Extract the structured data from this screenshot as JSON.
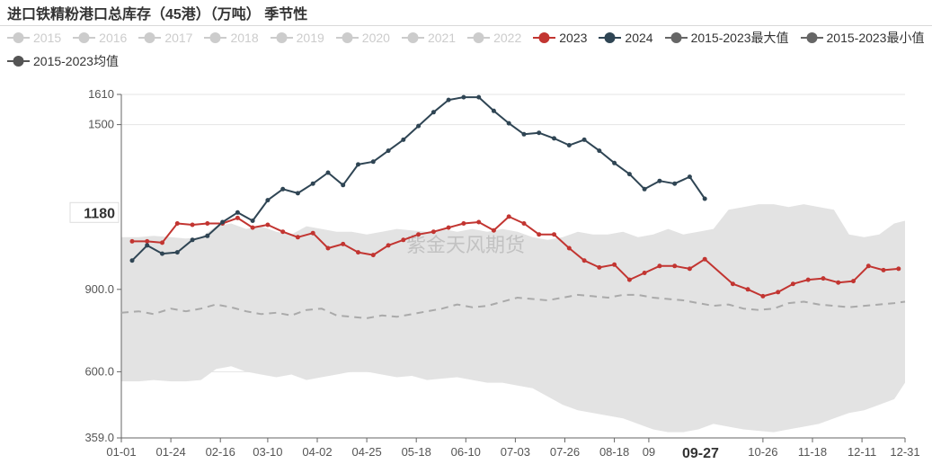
{
  "title": "进口铁精粉港口总库存（45港）（万吨） 季节性",
  "watermark": "紫金天风期货",
  "chart_data": {
    "type": "line",
    "title": "进口铁精粉港口总库存（45港）（万吨） 季节性",
    "xlabel": "",
    "ylabel": "",
    "ylim": [
      359,
      1610
    ],
    "y_ticks": [
      "1610",
      "1500",
      "900.0",
      "600.0",
      "359.0"
    ],
    "y_tick_values": [
      1610,
      1500,
      900,
      600,
      359
    ],
    "x_ticks": [
      "01-01",
      "01-24",
      "02-16",
      "03-10",
      "04-02",
      "04-25",
      "05-18",
      "06-10",
      "07-03",
      "07-26",
      "08-18",
      "09",
      "10-26",
      "11-18",
      "12-11",
      "12-31"
    ],
    "x_tick_days": [
      1,
      24,
      47,
      69,
      92,
      115,
      138,
      161,
      184,
      207,
      230,
      246,
      299,
      322,
      345,
      365
    ],
    "x_day_range": [
      1,
      365
    ],
    "hover": {
      "x_label": "09-27",
      "x_day": 270,
      "y_label": "1180",
      "y_value": 1180
    },
    "legend_placement": "top",
    "grid": true,
    "band": {
      "name": "2015-2023 range",
      "x": [
        1,
        9,
        16,
        24,
        31,
        38,
        45,
        52,
        59,
        66,
        73,
        80,
        87,
        94,
        101,
        108,
        115,
        122,
        129,
        136,
        143,
        150,
        157,
        164,
        171,
        178,
        185,
        192,
        199,
        206,
        213,
        220,
        227,
        234,
        241,
        248,
        255,
        262,
        269,
        276,
        283,
        290,
        297,
        304,
        311,
        318,
        325,
        332,
        339,
        346,
        353,
        360,
        365
      ],
      "upper": [
        1090,
        1090,
        1095,
        1090,
        1085,
        1090,
        1130,
        1140,
        1120,
        1130,
        1110,
        1100,
        1130,
        1120,
        1110,
        1110,
        1100,
        1110,
        1120,
        1115,
        1110,
        1120,
        1110,
        1120,
        1110,
        1120,
        1110,
        1090,
        1080,
        1090,
        1110,
        1100,
        1100,
        1110,
        1090,
        1100,
        1120,
        1100,
        1110,
        1120,
        1190,
        1200,
        1210,
        1210,
        1200,
        1210,
        1200,
        1190,
        1100,
        1090,
        1100,
        1140,
        1150
      ],
      "lower": [
        565,
        565,
        570,
        565,
        565,
        570,
        610,
        620,
        600,
        590,
        580,
        590,
        570,
        580,
        590,
        600,
        600,
        590,
        580,
        585,
        570,
        575,
        580,
        570,
        560,
        560,
        550,
        540,
        510,
        480,
        460,
        450,
        440,
        430,
        410,
        390,
        380,
        380,
        390,
        410,
        400,
        390,
        385,
        380,
        390,
        400,
        410,
        430,
        450,
        460,
        480,
        500,
        560
      ]
    },
    "series": [
      {
        "name": "2015",
        "active": false,
        "color": "#cccccc",
        "x": [],
        "y": []
      },
      {
        "name": "2016",
        "active": false,
        "color": "#cccccc",
        "x": [],
        "y": []
      },
      {
        "name": "2017",
        "active": false,
        "color": "#cccccc",
        "x": [],
        "y": []
      },
      {
        "name": "2018",
        "active": false,
        "color": "#cccccc",
        "x": [],
        "y": []
      },
      {
        "name": "2019",
        "active": false,
        "color": "#cccccc",
        "x": [],
        "y": []
      },
      {
        "name": "2020",
        "active": false,
        "color": "#cccccc",
        "x": [],
        "y": []
      },
      {
        "name": "2021",
        "active": false,
        "color": "#cccccc",
        "x": [],
        "y": []
      },
      {
        "name": "2022",
        "active": false,
        "color": "#cccccc",
        "x": [],
        "y": []
      },
      {
        "name": "2023",
        "active": true,
        "color": "#c23531",
        "x": [
          6,
          13,
          20,
          27,
          34,
          41,
          48,
          55,
          62,
          69,
          76,
          83,
          90,
          97,
          104,
          111,
          118,
          125,
          132,
          139,
          146,
          153,
          160,
          167,
          174,
          181,
          188,
          195,
          202,
          209,
          216,
          223,
          230,
          237,
          244,
          251,
          258,
          265,
          272,
          285,
          292,
          299,
          306,
          313,
          320,
          327,
          334,
          341,
          348,
          355,
          362
        ],
        "y": [
          1075,
          1075,
          1070,
          1140,
          1135,
          1140,
          1140,
          1160,
          1125,
          1135,
          1110,
          1090,
          1105,
          1050,
          1065,
          1035,
          1025,
          1060,
          1080,
          1100,
          1110,
          1125,
          1140,
          1145,
          1115,
          1165,
          1140,
          1100,
          1100,
          1050,
          1005,
          980,
          990,
          935,
          960,
          985,
          985,
          975,
          1010,
          920,
          900,
          875,
          890,
          920,
          935,
          940,
          925,
          930,
          985,
          970,
          975
        ]
      },
      {
        "name": "2024",
        "active": true,
        "color": "#2f4554",
        "x": [
          6,
          13,
          20,
          27,
          34,
          41,
          48,
          55,
          62,
          69,
          76,
          83,
          90,
          97,
          104,
          111,
          118,
          125,
          132,
          139,
          146,
          153,
          160,
          167,
          174,
          181,
          188,
          195,
          202,
          209,
          216,
          223,
          230,
          237,
          244,
          251,
          258,
          265,
          272
        ],
        "y": [
          1005,
          1060,
          1030,
          1035,
          1080,
          1095,
          1145,
          1180,
          1150,
          1225,
          1265,
          1250,
          1285,
          1325,
          1280,
          1355,
          1365,
          1405,
          1445,
          1495,
          1545,
          1590,
          1600,
          1600,
          1550,
          1505,
          1465,
          1470,
          1450,
          1425,
          1445,
          1405,
          1360,
          1320,
          1265,
          1295,
          1285,
          1310,
          1230
        ]
      },
      {
        "name": "2015-2023最大值",
        "active": true,
        "color": "#666666",
        "x": [],
        "y": []
      },
      {
        "name": "2015-2023最小值",
        "active": true,
        "color": "#666666",
        "x": [],
        "y": []
      },
      {
        "name": "2015-2023均值",
        "active": true,
        "color": "#aaaaaa",
        "dashed": true,
        "x": [
          1,
          9,
          16,
          24,
          31,
          38,
          45,
          52,
          59,
          66,
          73,
          80,
          87,
          94,
          101,
          108,
          115,
          122,
          129,
          136,
          143,
          150,
          157,
          164,
          171,
          178,
          185,
          192,
          199,
          206,
          213,
          220,
          227,
          234,
          241,
          248,
          255,
          262,
          269,
          276,
          283,
          290,
          297,
          304,
          311,
          318,
          325,
          332,
          339,
          346,
          353,
          360,
          365
        ],
        "y": [
          815,
          820,
          810,
          830,
          820,
          830,
          845,
          835,
          820,
          810,
          815,
          805,
          825,
          830,
          805,
          800,
          795,
          805,
          800,
          810,
          820,
          830,
          845,
          835,
          840,
          855,
          870,
          865,
          860,
          870,
          880,
          875,
          870,
          880,
          880,
          870,
          865,
          860,
          850,
          840,
          845,
          830,
          825,
          830,
          850,
          855,
          845,
          840,
          835,
          840,
          845,
          850,
          855
        ]
      }
    ]
  }
}
